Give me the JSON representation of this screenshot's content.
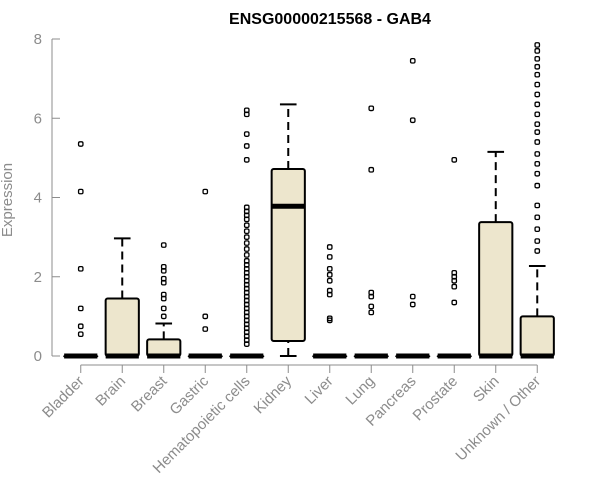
{
  "chart_data": {
    "type": "box",
    "title": "ENSG00000215568 - GAB4",
    "ylabel": "Expression",
    "xlabel": "",
    "ylim": [
      0,
      8
    ],
    "yticks": [
      0,
      2,
      4,
      6,
      8
    ],
    "box_fill": "#ede6cd",
    "grid": false,
    "categories": [
      "Bladder",
      "Brain",
      "Breast",
      "Gastric",
      "Hematopoietic cells",
      "Kidney",
      "Liver",
      "Lung",
      "Pancreas",
      "Prostate",
      "Skin",
      "Unknown / Other"
    ],
    "boxes": [
      {
        "category": "Bladder",
        "whisker_low": 0,
        "q1": 0,
        "median": 0,
        "q3": 0,
        "whisker_high": 0,
        "outliers": [
          5.35,
          4.15,
          2.2,
          1.2,
          0.75,
          0.55
        ]
      },
      {
        "category": "Brain",
        "whisker_low": 0,
        "q1": 0,
        "median": 0,
        "q3": 1.45,
        "whisker_high": 2.97,
        "outliers": []
      },
      {
        "category": "Breast",
        "whisker_low": 0,
        "q1": 0,
        "median": 0,
        "q3": 0.42,
        "whisker_high": 0.82,
        "outliers": [
          2.8,
          2.25,
          2.15,
          1.95,
          1.85,
          1.55,
          1.45,
          1.2,
          1.0
        ]
      },
      {
        "category": "Gastric",
        "whisker_low": 0,
        "q1": 0,
        "median": 0,
        "q3": 0,
        "whisker_high": 0,
        "outliers": [
          4.15,
          1.0,
          0.68
        ]
      },
      {
        "category": "Hematopoietic cells",
        "whisker_low": 0,
        "q1": 0,
        "median": 0,
        "q3": 0,
        "whisker_high": 0,
        "outliers": [
          6.2,
          6.1,
          5.6,
          5.3,
          4.95,
          3.75,
          3.65,
          3.55,
          3.45,
          3.3,
          3.15,
          3.0,
          2.85,
          2.7,
          2.55,
          2.4,
          2.3,
          2.2,
          2.1,
          2.0,
          1.9,
          1.8,
          1.7,
          1.6,
          1.5,
          1.4,
          1.3,
          1.2,
          1.1,
          1.0,
          0.9,
          0.8,
          0.7,
          0.6,
          0.5,
          0.4,
          0.3
        ]
      },
      {
        "category": "Kidney",
        "whisker_low": 0,
        "q1": 0.38,
        "median": 3.78,
        "q3": 4.72,
        "whisker_high": 6.35,
        "outliers": []
      },
      {
        "category": "Liver",
        "whisker_low": 0,
        "q1": 0,
        "median": 0,
        "q3": 0,
        "whisker_high": 0,
        "outliers": [
          2.75,
          2.5,
          2.2,
          2.05,
          1.9,
          1.65,
          1.55,
          0.95,
          0.9
        ]
      },
      {
        "category": "Lung",
        "whisker_low": 0,
        "q1": 0,
        "median": 0,
        "q3": 0,
        "whisker_high": 0,
        "outliers": [
          6.25,
          4.7,
          1.6,
          1.5,
          1.25,
          1.1
        ]
      },
      {
        "category": "Pancreas",
        "whisker_low": 0,
        "q1": 0,
        "median": 0,
        "q3": 0,
        "whisker_high": 0,
        "outliers": [
          7.45,
          5.95,
          1.5,
          1.3
        ]
      },
      {
        "category": "Prostate",
        "whisker_low": 0,
        "q1": 0,
        "median": 0,
        "q3": 0,
        "whisker_high": 0,
        "outliers": [
          4.95,
          2.1,
          2.0,
          1.9,
          1.75,
          1.35
        ]
      },
      {
        "category": "Skin",
        "whisker_low": 0,
        "q1": 0,
        "median": 0,
        "q3": 3.38,
        "whisker_high": 5.15,
        "outliers": []
      },
      {
        "category": "Unknown / Other",
        "whisker_low": 0,
        "q1": 0,
        "median": 0,
        "q3": 1.0,
        "whisker_high": 2.27,
        "outliers": [
          7.85,
          7.7,
          7.5,
          7.3,
          7.1,
          6.85,
          6.6,
          6.35,
          6.1,
          5.85,
          5.65,
          5.4,
          5.1,
          4.85,
          4.6,
          4.3,
          3.8,
          3.5,
          3.2,
          2.9,
          2.65
        ]
      }
    ]
  }
}
